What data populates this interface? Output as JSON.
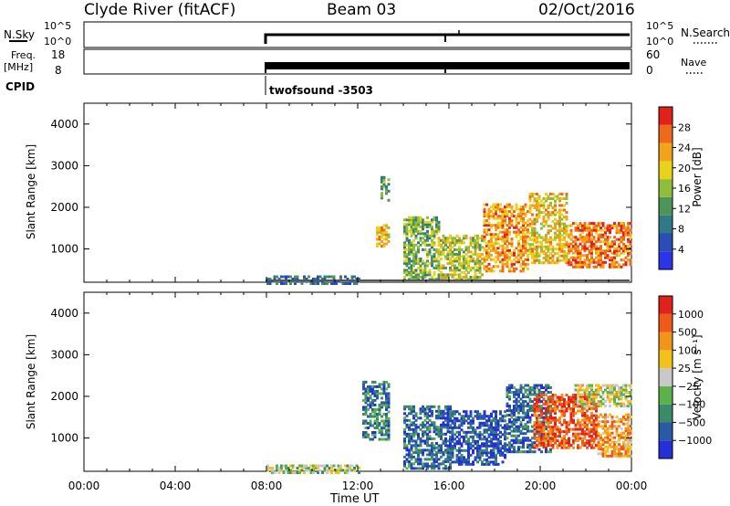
{
  "header": {
    "station": "Clyde River (fitACF)",
    "beam": "Beam 03",
    "date": "02/Oct/2016"
  },
  "top_panels": {
    "nsky_label": "N.Sky",
    "nsky_ticks": [
      "10^5",
      "10^0"
    ],
    "nsky_right_ticks": [
      "10^5",
      "10^0"
    ],
    "nsearch_label": "N.Search",
    "freq_label": "Freq.",
    "freq_unit": "[MHz]",
    "freq_ticks": [
      "18",
      "8"
    ],
    "nave_ticks": [
      "60",
      "0"
    ],
    "nave_label": "Nave",
    "cpid_label": "CPID",
    "cpid_text": "twofsound -3503"
  },
  "chart_data": [
    {
      "type": "heatmap",
      "panel": "power",
      "ylabel": "Slant Range [km]",
      "yticks": [
        1000,
        2000,
        3000,
        4000
      ],
      "ylim": [
        200,
        4500
      ],
      "xticks": [
        "00:00",
        "04:00",
        "08:00",
        "12:00",
        "16:00",
        "20:00",
        "00:00"
      ],
      "xlim_hours": [
        0,
        24
      ],
      "colorbar_label": "Power [dB]",
      "colorbar_ticks": [
        4,
        8,
        12,
        16,
        20,
        24,
        28
      ],
      "colorbar_colors": [
        "#2b34e6",
        "#2a4db8",
        "#2f7a86",
        "#4e9458",
        "#8fbf3a",
        "#e8d21a",
        "#f2a21b",
        "#ee6a1a",
        "#e1211b"
      ],
      "blobs": [
        {
          "t": [
            8.0,
            12.0
          ],
          "r": [
            200,
            420
          ],
          "level": 0.25
        },
        {
          "t": [
            12.8,
            13.3
          ],
          "r": [
            1100,
            1600
          ],
          "level": 0.7
        },
        {
          "t": [
            13.0,
            13.3
          ],
          "r": [
            2200,
            2800
          ],
          "level": 0.4
        },
        {
          "t": [
            14.0,
            15.5
          ],
          "r": [
            300,
            1800
          ],
          "level": 0.45
        },
        {
          "t": [
            15.5,
            17.5
          ],
          "r": [
            300,
            1400
          ],
          "level": 0.55
        },
        {
          "t": [
            17.5,
            19.5
          ],
          "r": [
            500,
            2100
          ],
          "level": 0.75
        },
        {
          "t": [
            19.5,
            21.2
          ],
          "r": [
            700,
            2400
          ],
          "level": 0.65
        },
        {
          "t": [
            21.2,
            24.0
          ],
          "r": [
            600,
            1700
          ],
          "level": 0.8
        }
      ]
    },
    {
      "type": "heatmap",
      "panel": "velocity",
      "ylabel": "Slant Range [km]",
      "yticks": [
        1000,
        2000,
        3000,
        4000
      ],
      "ylim": [
        200,
        4500
      ],
      "xticks": [
        "00:00",
        "04:00",
        "08:00",
        "12:00",
        "16:00",
        "20:00",
        "00:00"
      ],
      "xlim_hours": [
        0,
        24
      ],
      "xlabel": "Time UT",
      "colorbar_label": "Velocity [m s⁻¹]",
      "colorbar_ticks": [
        "1000",
        "500",
        "100",
        "25",
        "−25",
        "−100",
        "−500",
        "−1000"
      ],
      "colorbar_colors": [
        "#2330d8",
        "#2a5aa6",
        "#3c8a6a",
        "#5bb24a",
        "#c8c8c8",
        "#f2c21b",
        "#f2941b",
        "#ee5a1a",
        "#e1211b"
      ],
      "blobs": [
        {
          "t": [
            8.0,
            12.0
          ],
          "r": [
            200,
            380
          ],
          "level": 0.45
        },
        {
          "t": [
            12.2,
            13.3
          ],
          "r": [
            1000,
            2400
          ],
          "level": 0.25
        },
        {
          "t": [
            14.0,
            16.0
          ],
          "r": [
            300,
            1800
          ],
          "level": 0.2
        },
        {
          "t": [
            16.0,
            18.5
          ],
          "r": [
            400,
            1700
          ],
          "level": 0.15
        },
        {
          "t": [
            18.5,
            20.5
          ],
          "r": [
            700,
            2300
          ],
          "level": 0.2
        },
        {
          "t": [
            19.7,
            22.5
          ],
          "r": [
            800,
            2100
          ],
          "level": 0.85
        },
        {
          "t": [
            22.5,
            24.0
          ],
          "r": [
            600,
            1600
          ],
          "level": 0.7
        },
        {
          "t": [
            21.5,
            24.0
          ],
          "r": [
            1800,
            2300
          ],
          "level": 0.52
        }
      ]
    }
  ]
}
